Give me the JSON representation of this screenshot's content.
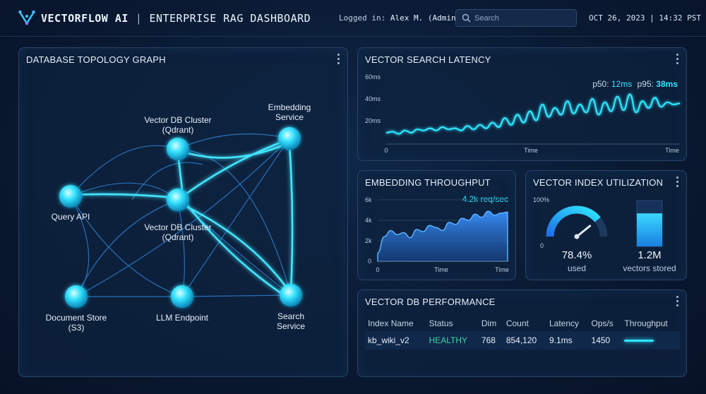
{
  "header": {
    "brand": "VECTORFLOW AI",
    "subtitle": "ENTERPRISE RAG DASHBOARD",
    "login_label": "Logged in:",
    "login_user": "Alex M. (Admin)",
    "search_placeholder": "Search",
    "datetime": "OCT 26, 2023 | 14:32 PST"
  },
  "topology": {
    "title": "DATABASE TOPOLOGY GRAPH",
    "nodes": {
      "vdb_top": "Vector DB Cluster (Qdrant)",
      "vdb_mid": "Vector DB Cluster (Qdrant)",
      "query_api": "Query API",
      "embedding": "Embedding Service",
      "doc_store": "Document Store (S3)",
      "llm": "LLM Endpoint",
      "search": "Search Service"
    }
  },
  "latency": {
    "title": "VECTOR SEARCH LATENCY",
    "p50_label": "p50:",
    "p50_value": "12ms",
    "p95_label": "p95:",
    "p95_value": "38ms",
    "y_ticks": [
      "60ms",
      "40ms",
      "20ms"
    ],
    "x_start": "0",
    "x_mid": "Time",
    "x_end": "Time"
  },
  "throughput": {
    "title": "EMBEDDING THROUGHPUT",
    "rate": "4.2k req/sec",
    "y_ticks": [
      "6k",
      "4k",
      "2k",
      "0"
    ],
    "x_start": "0",
    "x_mid": "Time",
    "x_end": "Time"
  },
  "utilization": {
    "title": "VECTOR INDEX UTILIZATION",
    "gauge_max": "100%",
    "gauge_min": "0",
    "used_value": "78.4%",
    "used_label": "used",
    "used_fraction": 0.784,
    "stored_value": "1.2M",
    "stored_label": "vectors stored",
    "stored_fill_fraction": 0.72
  },
  "performance": {
    "title": "VECTOR DB PERFORMANCE",
    "columns": [
      "Index Name",
      "Status",
      "Dim",
      "Count",
      "Latency",
      "Ops/s",
      "Throughput"
    ],
    "rows": [
      {
        "index_name": "kb_wiki_v2",
        "status": "HEALTHY",
        "dim": "768",
        "count": "854,120",
        "latency": "9.1ms",
        "ops": "1450"
      }
    ]
  },
  "colors": {
    "accent": "#2ee6ff",
    "healthy": "#3fd7a6",
    "panel_border": "#2a4366",
    "background": "#0a1a33"
  },
  "chart_data": [
    {
      "type": "line",
      "title": "VECTOR SEARCH LATENCY",
      "ylim": [
        0,
        60
      ],
      "y_unit": "ms",
      "values": [
        10,
        11,
        9,
        12,
        10,
        13,
        12,
        14,
        12,
        15,
        13,
        14,
        12,
        16,
        13,
        17,
        14,
        19,
        15,
        23,
        17,
        26,
        19,
        29,
        21,
        35,
        24,
        32,
        26,
        38,
        27,
        35,
        28,
        40,
        26,
        37,
        29,
        42,
        30,
        44,
        28,
        38,
        32,
        41,
        33,
        37,
        35,
        36
      ]
    },
    {
      "type": "area",
      "title": "EMBEDDING THROUGHPUT",
      "ylim": [
        0,
        6000
      ],
      "values": [
        800,
        2400,
        3000,
        2600,
        2800,
        2300,
        3100,
        2900,
        3500,
        3300,
        3000,
        3800,
        3600,
        4200,
        4000,
        4600,
        4300,
        4900,
        4500,
        4700,
        4800
      ]
    }
  ]
}
